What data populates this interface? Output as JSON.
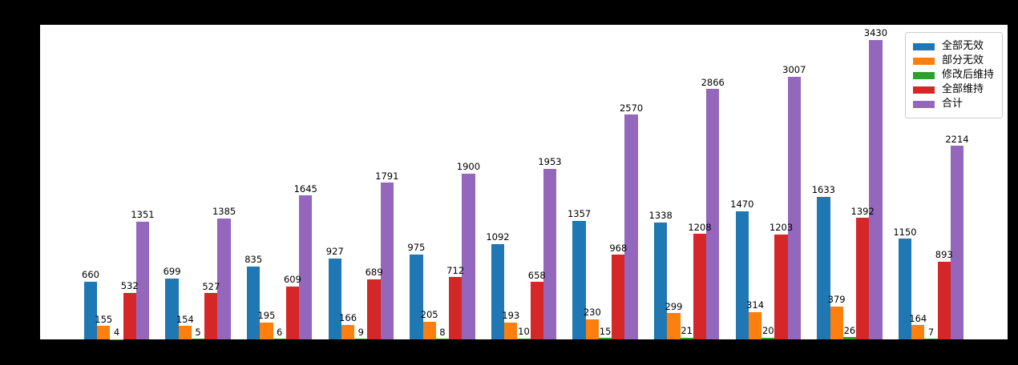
{
  "chart_data": {
    "type": "bar",
    "title": "",
    "xlabel": "",
    "ylabel": "",
    "num_groups": 11,
    "x_tick_labels_visible": false,
    "y_tick_labels_visible": false,
    "bar_value_labels": true,
    "grid": false,
    "legend_position": "upper right",
    "background_color": "#000000",
    "plot_background_color": "#ffffff",
    "ylim": [
      0,
      3600
    ],
    "series": [
      {
        "name": "全部无效",
        "color": "#1f77b4",
        "values": [
          660,
          699,
          835,
          927,
          975,
          1092,
          1357,
          1338,
          1470,
          1633,
          1150
        ]
      },
      {
        "name": "部分无效",
        "color": "#ff7f0e",
        "values": [
          155,
          154,
          195,
          166,
          205,
          193,
          230,
          299,
          314,
          379,
          164
        ]
      },
      {
        "name": "修改后维持",
        "color": "#2ca02c",
        "values": [
          4,
          5,
          6,
          9,
          8,
          10,
          15,
          21,
          20,
          26,
          7
        ]
      },
      {
        "name": "全部维持",
        "color": "#d62728",
        "values": [
          532,
          527,
          609,
          689,
          712,
          658,
          968,
          1208,
          1203,
          1392,
          893
        ]
      },
      {
        "name": "合计",
        "color": "#9467bd",
        "values": [
          1351,
          1385,
          1645,
          1791,
          1900,
          1953,
          2570,
          2866,
          3007,
          3430,
          2214
        ]
      }
    ]
  }
}
